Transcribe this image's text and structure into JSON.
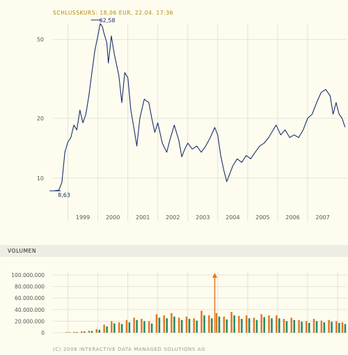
{
  "header": {
    "closing_price_text": "SCHLUSSKURS: 18,06 EUR, 22.04. 17:36"
  },
  "volume_section": {
    "title": "VOLUMEN"
  },
  "footer": {
    "copyright": "(C) 2008 INTERACTIVE DATA MANAGED SOLUTIONS AG"
  },
  "colors": {
    "background": "#fdfcef",
    "grid": "#e4e3d8",
    "price_line": "#1b2e6b",
    "accent_gold": "#b0880a",
    "volume_orange": "#e8771e",
    "volume_green": "#1e8c68",
    "axis_text": "#555555"
  },
  "chart_data": [
    {
      "type": "line",
      "title": "SCHLUSSKURS: 18,06 EUR, 22.04. 17:36",
      "y_scale": "log",
      "ylim": [
        7,
        60
      ],
      "yticks": [
        10,
        20,
        50
      ],
      "xlim": [
        1998.5,
        2008.3
      ],
      "xticks": [
        "1999",
        "2000",
        "2001",
        "2002",
        "2003",
        "2004",
        "2005",
        "2006",
        "2007"
      ],
      "grid": true,
      "annotations": [
        {
          "label": "8,63",
          "x": 1998.62,
          "y": 8.63
        },
        {
          "label": "62,58",
          "x": 2000.0,
          "y": 62.58
        }
      ],
      "series": [
        {
          "points": [
            [
              1998.55,
              8.63
            ],
            [
              1998.7,
              8.7
            ],
            [
              1998.8,
              9.5
            ],
            [
              1998.9,
              13.5
            ],
            [
              1999.0,
              15.2
            ],
            [
              1999.1,
              16.0
            ],
            [
              1999.2,
              18.5
            ],
            [
              1999.3,
              17.5
            ],
            [
              1999.4,
              22.0
            ],
            [
              1999.5,
              19.0
            ],
            [
              1999.6,
              21.0
            ],
            [
              1999.7,
              26.0
            ],
            [
              1999.8,
              34.0
            ],
            [
              1999.9,
              44.0
            ],
            [
              2000.0,
              52.0
            ],
            [
              2000.08,
              60.0
            ],
            [
              2000.15,
              58.0
            ],
            [
              2000.2,
              54.0
            ],
            [
              2000.3,
              48.0
            ],
            [
              2000.35,
              38.0
            ],
            [
              2000.45,
              52.0
            ],
            [
              2000.55,
              42.0
            ],
            [
              2000.7,
              33.0
            ],
            [
              2000.8,
              24.0
            ],
            [
              2000.9,
              34.0
            ],
            [
              2001.0,
              32.0
            ],
            [
              2001.1,
              22.0
            ],
            [
              2001.2,
              18.0
            ],
            [
              2001.3,
              14.5
            ],
            [
              2001.4,
              20.0
            ],
            [
              2001.55,
              25.0
            ],
            [
              2001.7,
              24.0
            ],
            [
              2001.8,
              20.0
            ],
            [
              2001.9,
              17.0
            ],
            [
              2002.0,
              19.0
            ],
            [
              2002.15,
              15.0
            ],
            [
              2002.3,
              13.5
            ],
            [
              2002.4,
              15.5
            ],
            [
              2002.55,
              18.5
            ],
            [
              2002.7,
              15.5
            ],
            [
              2002.8,
              12.8
            ],
            [
              2002.9,
              14.0
            ],
            [
              2003.0,
              15.0
            ],
            [
              2003.15,
              14.0
            ],
            [
              2003.3,
              14.5
            ],
            [
              2003.45,
              13.5
            ],
            [
              2003.6,
              14.5
            ],
            [
              2003.75,
              16.0
            ],
            [
              2003.9,
              18.0
            ],
            [
              2004.0,
              16.5
            ],
            [
              2004.1,
              13.0
            ],
            [
              2004.2,
              11.0
            ],
            [
              2004.3,
              9.6
            ],
            [
              2004.4,
              10.5
            ],
            [
              2004.5,
              11.5
            ],
            [
              2004.65,
              12.5
            ],
            [
              2004.8,
              12.0
            ],
            [
              2004.95,
              13.0
            ],
            [
              2005.1,
              12.5
            ],
            [
              2005.25,
              13.5
            ],
            [
              2005.4,
              14.5
            ],
            [
              2005.55,
              15.0
            ],
            [
              2005.7,
              16.0
            ],
            [
              2005.85,
              17.5
            ],
            [
              2005.95,
              18.5
            ],
            [
              2006.1,
              16.5
            ],
            [
              2006.25,
              17.5
            ],
            [
              2006.4,
              16.0
            ],
            [
              2006.55,
              16.5
            ],
            [
              2006.7,
              16.0
            ],
            [
              2006.85,
              17.5
            ],
            [
              2007.0,
              20.0
            ],
            [
              2007.15,
              21.0
            ],
            [
              2007.3,
              24.0
            ],
            [
              2007.45,
              27.0
            ],
            [
              2007.6,
              28.0
            ],
            [
              2007.75,
              26.0
            ],
            [
              2007.85,
              21.0
            ],
            [
              2007.95,
              24.0
            ],
            [
              2008.05,
              21.0
            ],
            [
              2008.15,
              20.0
            ],
            [
              2008.25,
              18.06
            ]
          ]
        }
      ]
    },
    {
      "type": "bar",
      "title": "VOLUMEN",
      "ylim": [
        0,
        100000000
      ],
      "yticks": [
        "0",
        "20.000.000",
        "40.000.000",
        "60.000.000",
        "80.000.000",
        "100.000.000"
      ],
      "ytick_values": [
        0,
        20000000,
        40000000,
        60000000,
        80000000,
        100000000
      ],
      "xlim": [
        1998.5,
        2008.3
      ],
      "grid": true,
      "overflow_marker": {
        "x": 2003.9,
        "exceeds": 100000000
      },
      "x": [
        1999.0,
        1999.25,
        1999.5,
        1999.75,
        2000.0,
        2000.25,
        2000.5,
        2000.75,
        2001.0,
        2001.25,
        2001.5,
        2001.75,
        2002.0,
        2002.25,
        2002.5,
        2002.75,
        2003.0,
        2003.25,
        2003.5,
        2003.75,
        2004.0,
        2004.25,
        2004.5,
        2004.75,
        2005.0,
        2005.25,
        2005.5,
        2005.75,
        2006.0,
        2006.25,
        2006.5,
        2006.75,
        2007.0,
        2007.25,
        2007.5,
        2007.75,
        2008.0,
        2008.2
      ],
      "series": [
        {
          "values": [
            1000000,
            1500000,
            2500000,
            3500000,
            6000000,
            14000000,
            20000000,
            18000000,
            22000000,
            26000000,
            24000000,
            20000000,
            32000000,
            30000000,
            34000000,
            26000000,
            28000000,
            25000000,
            38000000,
            30000000,
            34000000,
            28000000,
            36000000,
            29000000,
            30000000,
            26000000,
            32000000,
            30000000,
            30000000,
            24000000,
            26000000,
            22000000,
            20000000,
            24000000,
            21000000,
            22000000,
            20000000,
            18000000
          ]
        },
        {
          "values": [
            800000,
            1200000,
            2000000,
            3000000,
            5000000,
            11000000,
            16000000,
            15000000,
            18000000,
            22000000,
            20000000,
            16000000,
            26000000,
            25000000,
            28000000,
            22000000,
            24000000,
            21000000,
            30000000,
            25000000,
            28000000,
            23000000,
            30000000,
            24000000,
            25000000,
            22000000,
            27000000,
            25000000,
            25000000,
            20000000,
            22000000,
            19000000,
            17000000,
            20000000,
            18000000,
            19000000,
            17000000,
            15000000
          ]
        }
      ]
    }
  ]
}
